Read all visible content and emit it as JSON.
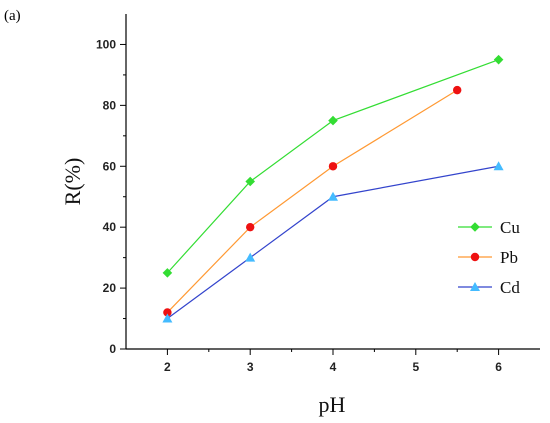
{
  "panel_label": "(a)",
  "chart_data": {
    "type": "line",
    "title": "",
    "xlabel": "pH",
    "ylabel": "R(%)",
    "xlim": [
      1.5,
      6.5
    ],
    "ylim": [
      0,
      110
    ],
    "xticks": [
      2,
      3,
      4,
      5,
      6
    ],
    "yticks": [
      0,
      20,
      40,
      60,
      80,
      100
    ],
    "grid": false,
    "legend_position": "right",
    "series": [
      {
        "name": "Cu",
        "color": "#33dd33",
        "marker": "diamond",
        "x": [
          2,
          3,
          4,
          6
        ],
        "y": [
          25,
          55,
          75,
          95
        ]
      },
      {
        "name": "Pb",
        "color": "#ff9933",
        "marker_color": "#ee1111",
        "marker": "circle",
        "x": [
          2,
          3,
          4,
          5.5
        ],
        "y": [
          12,
          40,
          60,
          85
        ]
      },
      {
        "name": "Cd",
        "color": "#3344cc",
        "marker_color": "#44bbff",
        "marker": "triangle",
        "x": [
          2,
          3,
          4,
          6
        ],
        "y": [
          10,
          30,
          50,
          60
        ]
      }
    ]
  }
}
